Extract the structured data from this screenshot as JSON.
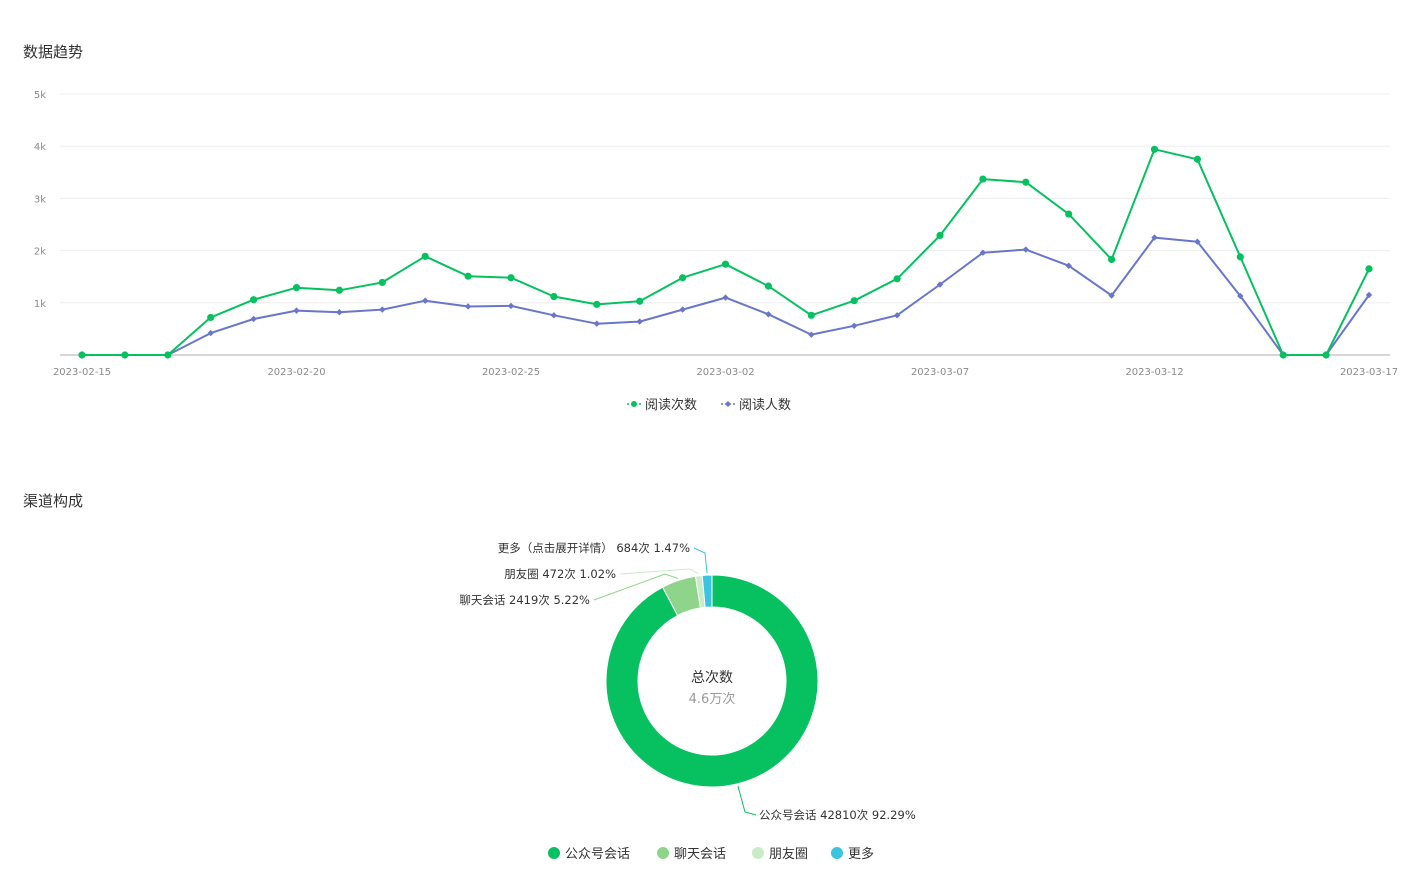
{
  "sections": {
    "trend_title": "数据趋势",
    "channel_title": "渠道构成"
  },
  "colors": {
    "reads": "#07c160",
    "readers": "#6a76c9",
    "channel_official": "#07c160",
    "channel_chat": "#8ed48b",
    "channel_moments": "#c9ecc6",
    "channel_more": "#3bc4de"
  },
  "chart_data": [
    {
      "type": "line",
      "title": "数据趋势",
      "x": [
        "2023-02-15",
        "2023-02-16",
        "2023-02-17",
        "2023-02-18",
        "2023-02-19",
        "2023-02-20",
        "2023-02-21",
        "2023-02-22",
        "2023-02-23",
        "2023-02-24",
        "2023-02-25",
        "2023-02-26",
        "2023-02-27",
        "2023-02-28",
        "2023-03-01",
        "2023-03-02",
        "2023-03-03",
        "2023-03-04",
        "2023-03-05",
        "2023-03-06",
        "2023-03-07",
        "2023-03-08",
        "2023-03-09",
        "2023-03-10",
        "2023-03-11",
        "2023-03-12",
        "2023-03-13",
        "2023-03-14",
        "2023-03-15",
        "2023-03-16",
        "2023-03-17"
      ],
      "x_tick_labels": [
        "2023-02-15",
        "2023-02-20",
        "2023-02-25",
        "2023-03-02",
        "2023-03-07",
        "2023-03-12",
        "2023-03-17"
      ],
      "y_tick_labels": [
        "5k",
        "4k",
        "3k",
        "2k",
        "1k"
      ],
      "ylim": [
        0,
        5000
      ],
      "grid": true,
      "legend_position": "bottom-center",
      "series": [
        {
          "name": "阅读次数",
          "marker": "circle",
          "values": [
            0,
            0,
            0,
            720,
            1060,
            1290,
            1240,
            1390,
            1890,
            1510,
            1480,
            1120,
            970,
            1030,
            1480,
            1740,
            1320,
            760,
            1040,
            1460,
            2290,
            3370,
            3310,
            2700,
            1830,
            3940,
            3750,
            1880,
            0,
            0,
            1650
          ]
        },
        {
          "name": "阅读人数",
          "marker": "diamond",
          "values": [
            0,
            0,
            0,
            420,
            690,
            850,
            820,
            870,
            1040,
            930,
            940,
            760,
            600,
            640,
            870,
            1100,
            780,
            390,
            560,
            760,
            1350,
            1960,
            2020,
            1710,
            1140,
            2250,
            2170,
            1130,
            0,
            0,
            1150
          ]
        }
      ]
    },
    {
      "type": "pie",
      "title": "渠道构成",
      "center_title": "总次数",
      "center_value": "4.6万次",
      "slices": [
        {
          "name": "公众号会话",
          "value": 42810,
          "percent": 92.29,
          "label": "公众号会话 42810次 92.29%",
          "legend": "公众号会话"
        },
        {
          "name": "聊天会话",
          "value": 2419,
          "percent": 5.22,
          "label": "聊天会话 2419次 5.22%",
          "legend": "聊天会话"
        },
        {
          "name": "朋友圈",
          "value": 472,
          "percent": 1.02,
          "label": "朋友圈 472次 1.02%",
          "legend": "朋友圈"
        },
        {
          "name": "更多",
          "value": 684,
          "percent": 1.47,
          "label": "更多（点击展开详情） 684次 1.47%",
          "legend": "更多"
        }
      ]
    }
  ]
}
